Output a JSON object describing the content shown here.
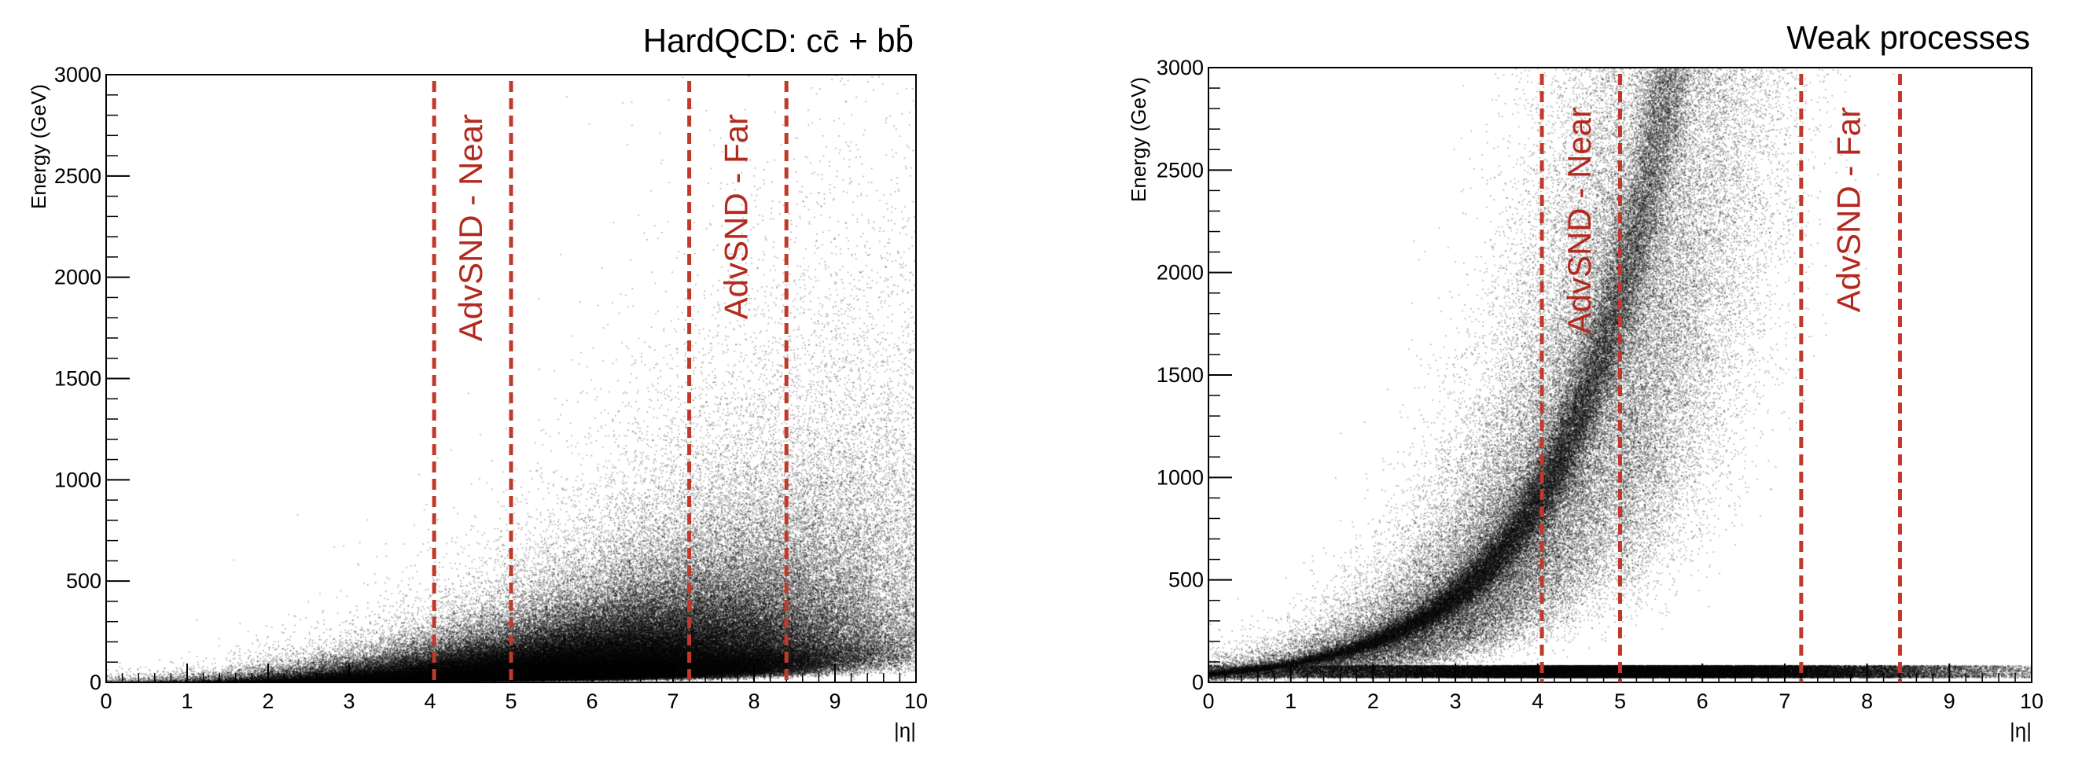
{
  "chart_data": [
    {
      "type": "heatmap",
      "title": "HardQCD: cc̄ + bb̄",
      "xlabel": "|η|",
      "ylabel": "Energy (GeV)",
      "xlim": [
        0,
        10
      ],
      "ylim": [
        0,
        3000
      ],
      "x_ticks": [
        0,
        1,
        2,
        3,
        4,
        5,
        6,
        7,
        8,
        9,
        10
      ],
      "y_ticks": [
        0,
        500,
        1000,
        1500,
        2000,
        2500,
        3000
      ],
      "grid": false,
      "density_color": "#000000",
      "density_profile": "broad",
      "vlines": [
        {
          "x": 4.05,
          "color": "#c0392b"
        },
        {
          "x": 5.0,
          "color": "#c0392b"
        },
        {
          "x": 7.2,
          "color": "#c0392b"
        },
        {
          "x": 8.4,
          "color": "#c0392b"
        }
      ],
      "regions": [
        {
          "label": "AdvSND - Near",
          "x_range": [
            4.05,
            5.0
          ]
        },
        {
          "label": "AdvSND - Far",
          "x_range": [
            7.2,
            8.4
          ]
        }
      ]
    },
    {
      "type": "heatmap",
      "title": "Weak processes",
      "xlabel": "|η|",
      "ylabel": "Energy (GeV)",
      "xlim": [
        0,
        10
      ],
      "ylim": [
        0,
        3000
      ],
      "x_ticks": [
        0,
        1,
        2,
        3,
        4,
        5,
        6,
        7,
        8,
        9,
        10
      ],
      "y_ticks": [
        0,
        500,
        1000,
        1500,
        2000,
        2500,
        3000
      ],
      "grid": false,
      "density_color": "#000000",
      "density_profile": "exponential-ridge",
      "vlines": [
        {
          "x": 4.05,
          "color": "#c0392b"
        },
        {
          "x": 5.0,
          "color": "#c0392b"
        },
        {
          "x": 7.2,
          "color": "#c0392b"
        },
        {
          "x": 8.4,
          "color": "#c0392b"
        }
      ],
      "regions": [
        {
          "label": "AdvSND - Near",
          "x_range": [
            4.05,
            5.0
          ]
        },
        {
          "label": "AdvSND - Far",
          "x_range": [
            7.2,
            8.4
          ]
        }
      ]
    }
  ]
}
